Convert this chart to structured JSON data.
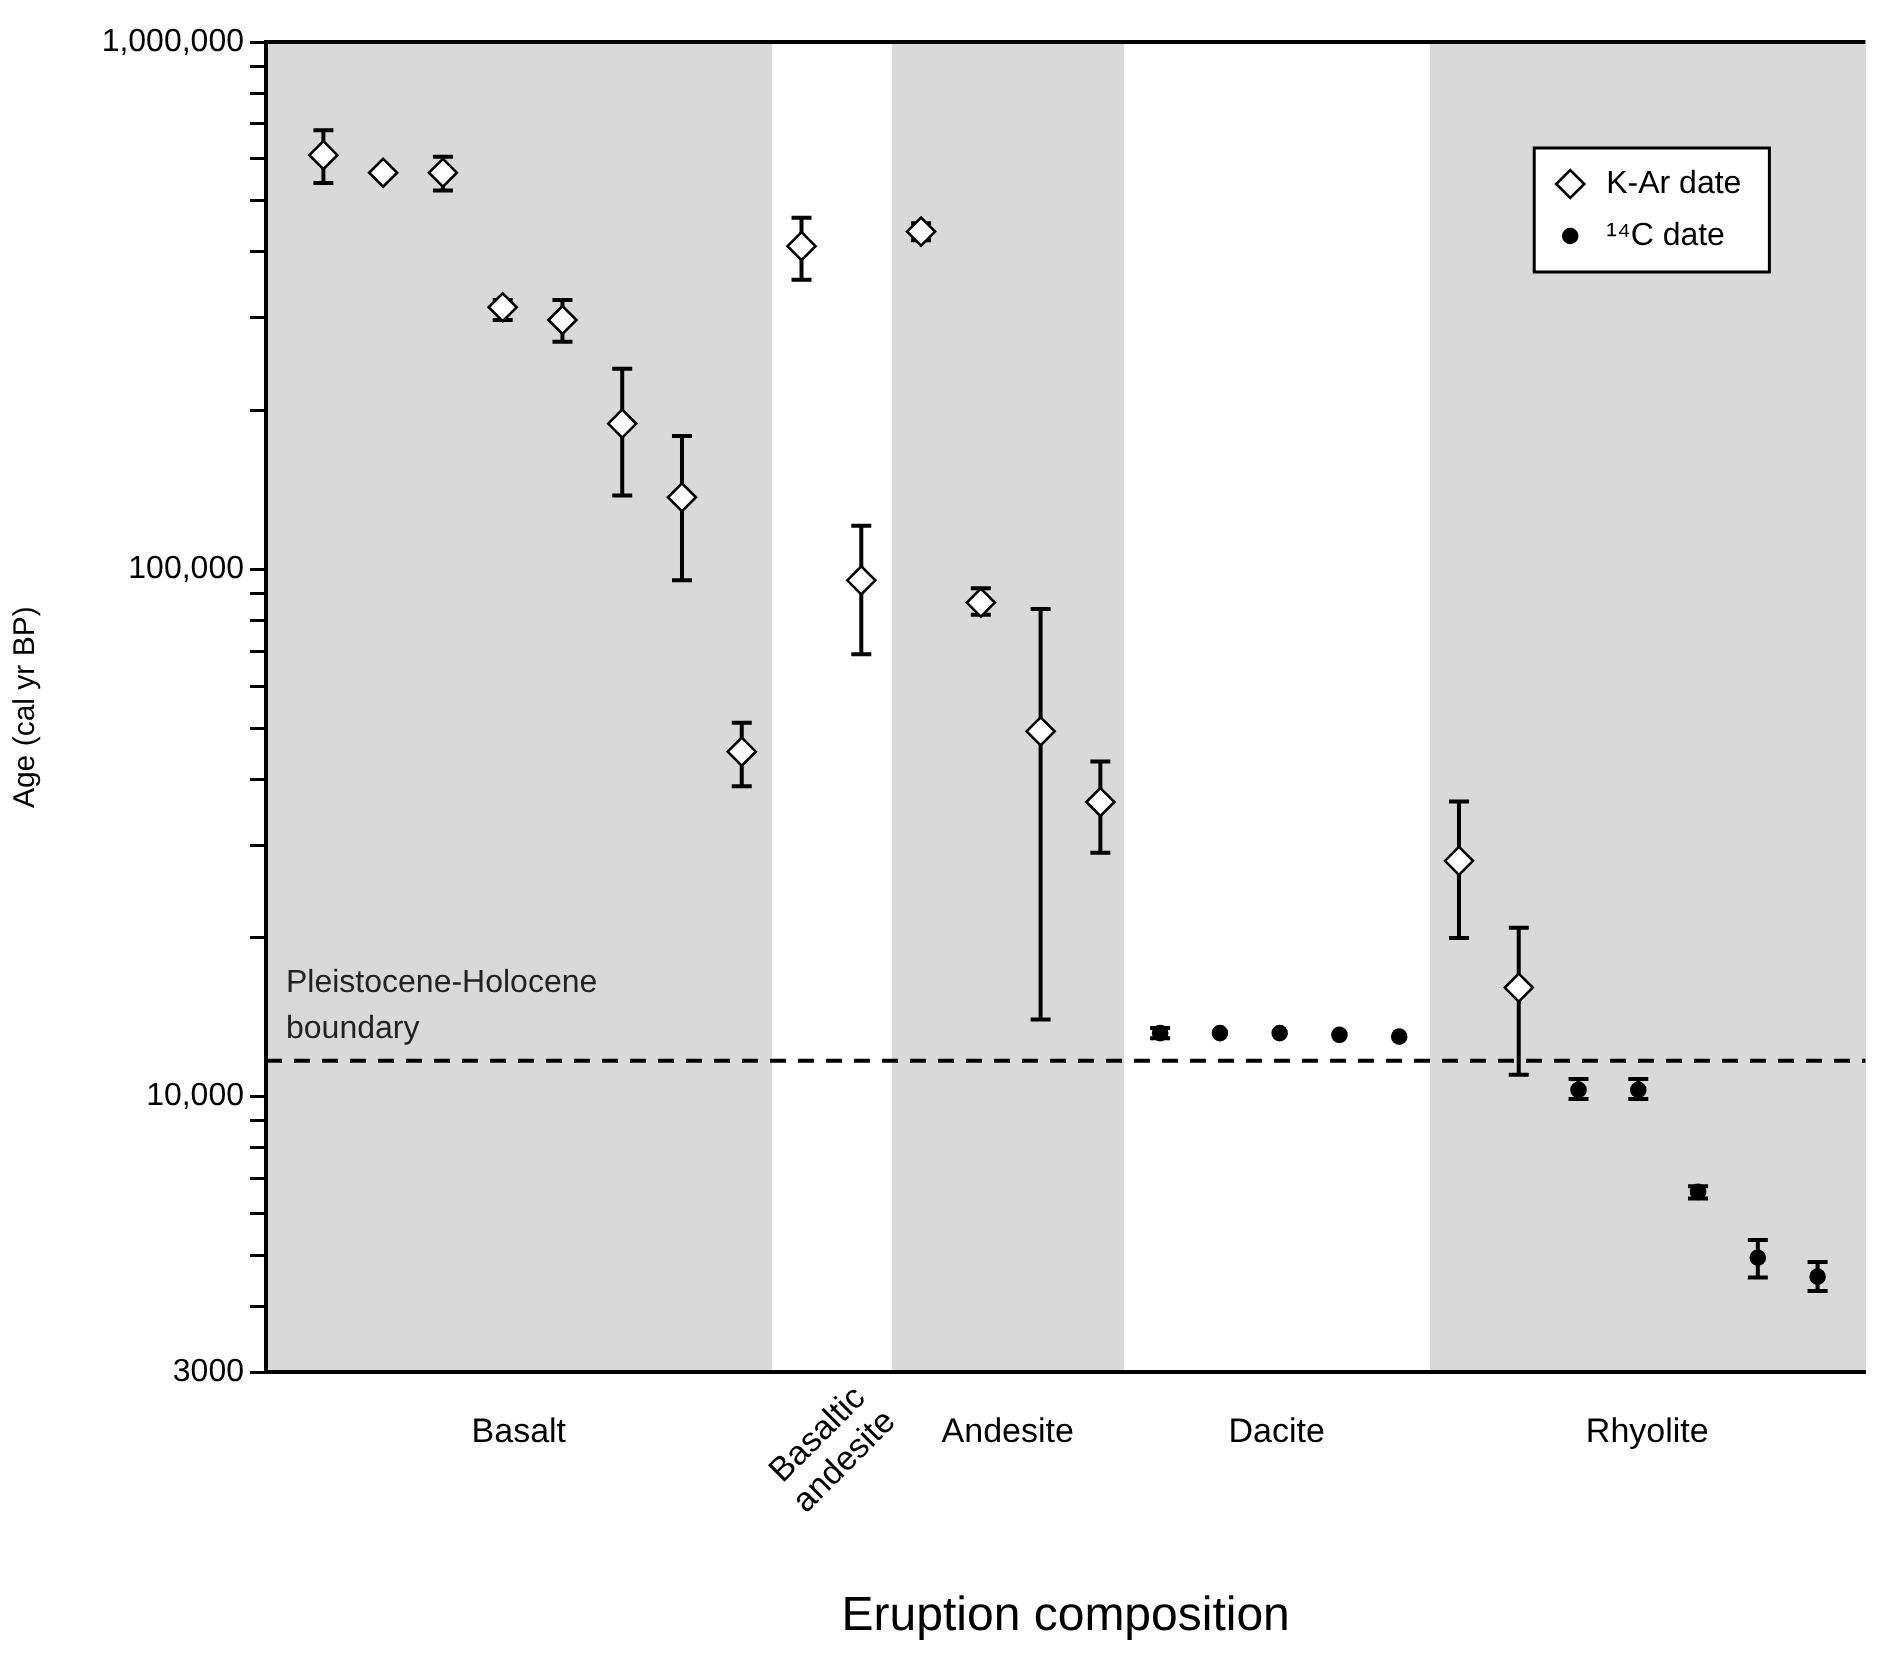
{
  "chart_data": {
    "type": "scatter",
    "xlabel": "Eruption composition",
    "ylabel": "Age (cal yr BP)",
    "log": "y",
    "ylim": [
      3000,
      1000000
    ],
    "tick_labels": "y",
    "legend": "top right",
    "categories": [
      null,
      null,
      null,
      null,
      null,
      null,
      null,
      null,
      null,
      null,
      null,
      null,
      null,
      null,
      null,
      null,
      null,
      null,
      null,
      null,
      null,
      null,
      null,
      null,
      null,
      null
    ],
    "yticks": [
      3000,
      {
        "value": 4000,
        "label": null
      },
      {
        "value": 5000,
        "label": null
      },
      {
        "value": 6000,
        "label": null
      },
      {
        "value": 7000,
        "label": null
      },
      {
        "value": 8000,
        "label": null
      },
      {
        "value": 9000,
        "label": null
      },
      {
        "value": 10000,
        "label": "10,000"
      },
      {
        "value": 20000,
        "label": null
      },
      {
        "value": 30000,
        "label": null
      },
      {
        "value": 40000,
        "label": null
      },
      {
        "value": 50000,
        "label": null
      },
      {
        "value": 60000,
        "label": null
      },
      {
        "value": 70000,
        "label": null
      },
      {
        "value": 80000,
        "label": null
      },
      {
        "value": 90000,
        "label": null
      },
      {
        "value": 100000,
        "label": "100,000"
      },
      {
        "value": 200000,
        "label": null
      },
      {
        "value": 300000,
        "label": null
      },
      {
        "value": 400000,
        "label": null
      },
      {
        "value": 500000,
        "label": null
      },
      {
        "value": 600000,
        "label": null
      },
      {
        "value": 700000,
        "label": null
      },
      {
        "value": 800000,
        "label": null
      },
      {
        "value": 900000,
        "label": null
      },
      {
        "value": 1000000,
        "label": "1,000,000"
      }
    ],
    "series": [
      {
        "name": "K-Ar date",
        "marker": "diamond",
        "color": "#ffffff",
        "values": [
          610000,
          565000,
          565000,
          314000,
          297000,
          189000,
          137000,
          45100,
          410000,
          95300,
          437000,
          86500,
          49300,
          36200,
          null,
          null,
          null,
          null,
          null,
          28000,
          16100,
          null,
          null,
          null,
          null,
          null
        ],
        "errors": [
          [
            540000,
            680000
          ],
          null,
          [
            523000,
            606000
          ],
          [
            297000,
            324000
          ],
          [
            270000,
            324000
          ],
          [
            138000,
            240000
          ],
          [
            95300,
            179000
          ],
          [
            38800,
            51200
          ],
          [
            354000,
            464000
          ],
          [
            69000,
            121000
          ],
          [
            421000,
            453000
          ],
          [
            82000,
            92100
          ],
          [
            14000,
            84100
          ],
          [
            29000,
            43200
          ],
          null,
          null,
          null,
          null,
          null,
          [
            20000,
            36300
          ],
          [
            11000,
            20900
          ],
          null,
          null,
          null,
          null,
          null
        ]
      },
      {
        "name": "¹⁴C date",
        "marker": "circle",
        "color": "#000000",
        "values": [
          null,
          null,
          null,
          null,
          null,
          null,
          null,
          null,
          null,
          null,
          null,
          null,
          null,
          null,
          13200,
          13200,
          13200,
          13100,
          13000,
          null,
          null,
          10300,
          10300,
          6600,
          4950,
          4560
        ],
        "errors": [
          null,
          null,
          null,
          null,
          null,
          null,
          null,
          null,
          null,
          null,
          null,
          null,
          null,
          null,
          [
            12900,
            13500
          ],
          null,
          null,
          null,
          null,
          null,
          null,
          [
            9900,
            10800
          ],
          [
            9900,
            10800
          ],
          [
            6410,
            6760
          ],
          [
            4540,
            5350
          ],
          [
            4280,
            4860
          ]
        ]
      }
    ],
    "annotations": [
      "Basalt",
      "Basaltic andesite",
      "Andesite",
      "Dacite",
      "Rhyolite"
    ],
    "ref_lines": [
      {
        "axis": "y",
        "value": 11700,
        "label": "Pleistocene-Holocene boundary",
        "line_style": "dashed",
        "color": "#000000"
      }
    ]
  }
}
